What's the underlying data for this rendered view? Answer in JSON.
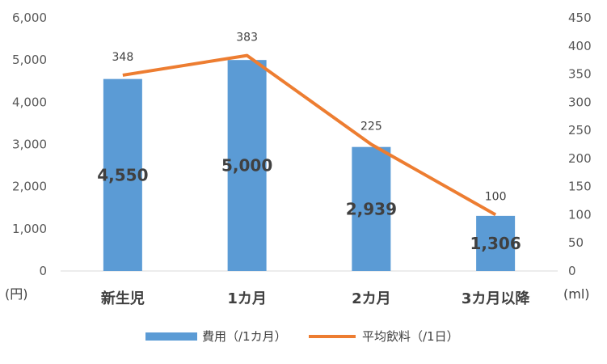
{
  "chart_data": {
    "type": "bar",
    "categories": [
      "新生児",
      "1カ月",
      "2カ月",
      "3カ月以降"
    ],
    "series": [
      {
        "name": "費用（/1カ月）",
        "type": "bar",
        "axis": "left",
        "color": "#5B9BD5",
        "values": [
          4550,
          5000,
          2939,
          1306
        ],
        "labels": [
          "4,550",
          "5,000",
          "2,939",
          "1,306"
        ]
      },
      {
        "name": "平均飲料（/1日）",
        "type": "line",
        "axis": "right",
        "color": "#ED7D31",
        "values": [
          348,
          383,
          225,
          100
        ],
        "labels": [
          "348",
          "383",
          "225",
          "100"
        ]
      }
    ],
    "y_left": {
      "unit": "(円)",
      "ylim": [
        0,
        6000
      ],
      "ticks": [
        "0",
        "1,000",
        "2,000",
        "3,000",
        "4,000",
        "5,000",
        "6,000"
      ]
    },
    "y_right": {
      "unit": "(ml)",
      "ylim": [
        0,
        450
      ],
      "ticks": [
        "0",
        "50",
        "100",
        "150",
        "200",
        "250",
        "300",
        "350",
        "400",
        "450"
      ]
    },
    "grid": false,
    "legend_position": "bottom"
  }
}
